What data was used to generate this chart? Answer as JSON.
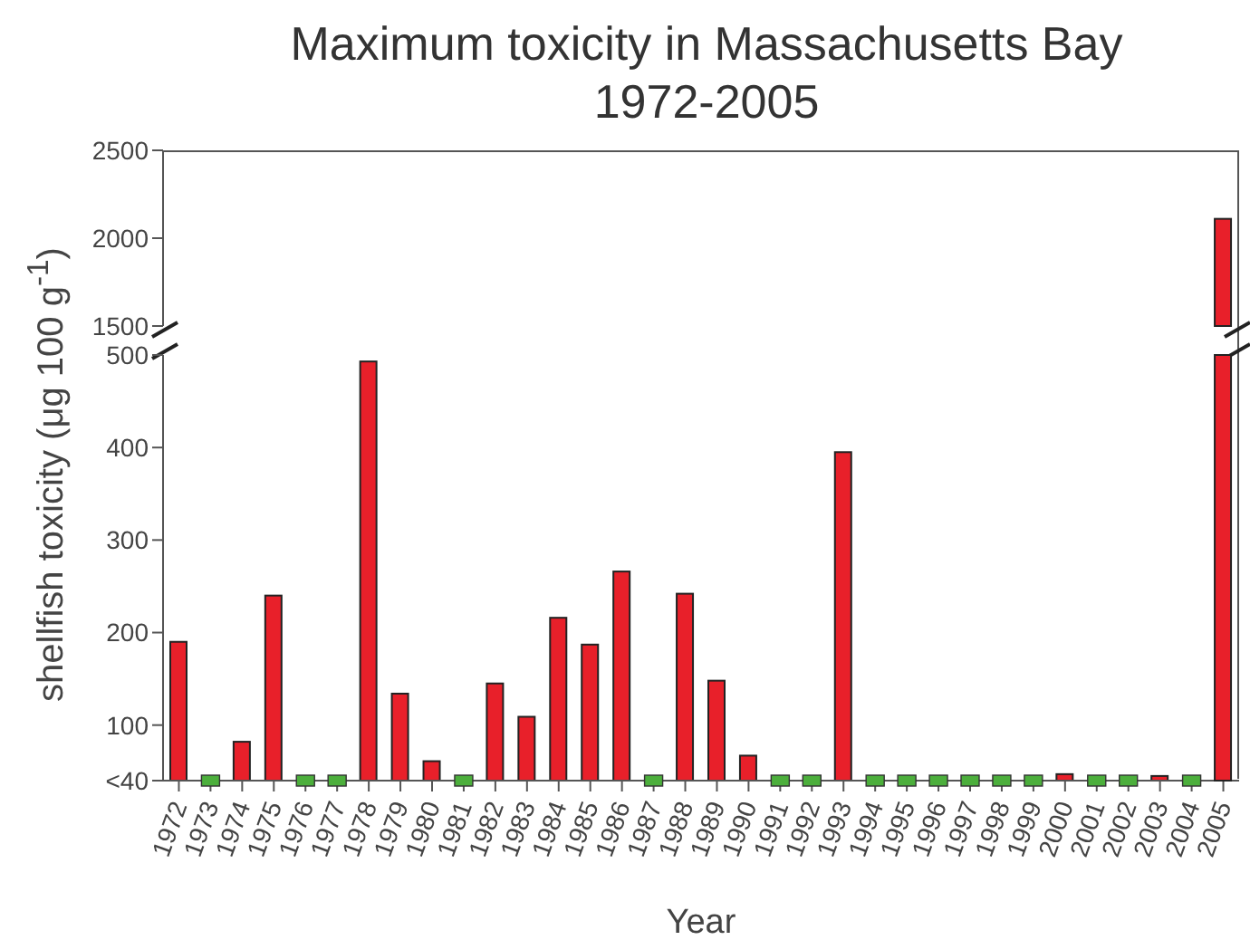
{
  "chart_data": [
    {
      "type": "bar",
      "title": "Maximum toxicity in Massachusetts Bay 1972-2005",
      "categories": [
        "1972",
        "1973",
        "1974",
        "1975",
        "1976",
        "1977",
        "1978",
        "1979",
        "1980",
        "1981",
        "1982",
        "1983",
        "1984",
        "1985",
        "1986",
        "1987",
        "1988",
        "1989",
        "1990",
        "1991",
        "1992",
        "1993",
        "1994",
        "1995",
        "1996",
        "1997",
        "1998",
        "1999",
        "2000",
        "2001",
        "2002",
        "2003",
        "2004",
        "2005"
      ],
      "series": [
        {
          "type": "bar",
          "color": "#e8202a",
          "values": [
            null,
            null,
            null,
            null,
            null,
            null,
            null,
            null,
            null,
            null,
            null,
            null,
            null,
            null,
            null,
            null,
            null,
            null,
            null,
            null,
            null,
            null,
            null,
            null,
            null,
            null,
            null,
            null,
            null,
            null,
            null,
            null,
            null,
            2110
          ]
        }
      ],
      "ylim": [
        1500,
        2500
      ],
      "yticks": [
        1500,
        2000,
        2500
      ],
      "tick_labels": "y"
    },
    {
      "type": "bar",
      "xlabel": "Year",
      "ylabel": "shellfish toxicity (μg 100 g$^{-1}$)",
      "categories": [
        "1972",
        "1973",
        "1974",
        "1975",
        "1976",
        "1977",
        "1978",
        "1979",
        "1980",
        "1981",
        "1982",
        "1983",
        "1984",
        "1985",
        "1986",
        "1987",
        "1988",
        "1989",
        "1990",
        "1991",
        "1992",
        "1993",
        "1994",
        "1995",
        "1996",
        "1997",
        "1998",
        "1999",
        "2000",
        "2001",
        "2002",
        "2003",
        "2004",
        "2005"
      ],
      "series": [
        {
          "type": "bar",
          "color": "#e8202a",
          "values": [
            190,
            null,
            82,
            240,
            null,
            null,
            493,
            134,
            61,
            null,
            145,
            109,
            216,
            187,
            266,
            null,
            242,
            148,
            67,
            null,
            null,
            395,
            null,
            null,
            null,
            null,
            null,
            null,
            47,
            null,
            null,
            45,
            null,
            null
          ]
        },
        {
          "type": "scatter",
          "color": "#4caf3c",
          "marker": "square",
          "values": [
            null,
            40,
            null,
            null,
            40,
            40,
            null,
            null,
            null,
            40,
            null,
            null,
            null,
            null,
            null,
            40,
            null,
            null,
            null,
            40,
            40,
            null,
            40,
            40,
            40,
            40,
            40,
            40,
            null,
            40,
            40,
            null,
            40,
            null
          ]
        }
      ],
      "ylim": [
        40,
        500
      ],
      "yticks": [
        {
          "value": 40,
          "label": "<40"
        },
        100,
        200,
        300,
        400,
        500
      ]
    }
  ]
}
